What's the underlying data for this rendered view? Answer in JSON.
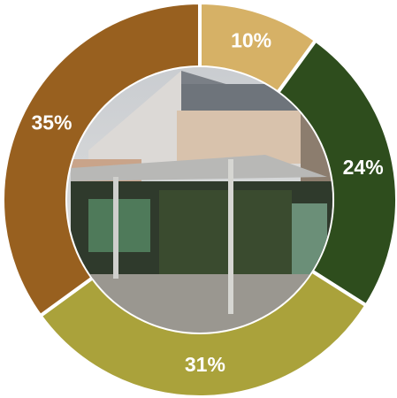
{
  "chart_data": {
    "type": "donut",
    "values": [
      10,
      24,
      31,
      35
    ],
    "value_labels": [
      "10%",
      "24%",
      "31%",
      "35%"
    ],
    "colors": [
      "#d6b166",
      "#2e4d1d",
      "#aaa23b",
      "#98601f"
    ]
  }
}
